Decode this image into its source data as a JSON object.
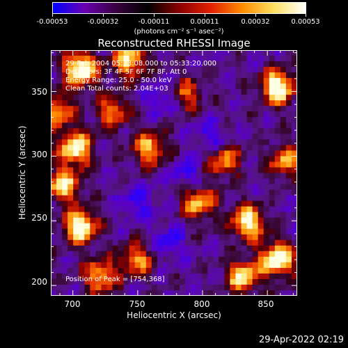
{
  "colorbar": {
    "tick_labels": [
      "-0.00053",
      "-0.00032",
      "-0.00011",
      "0.00011",
      "0.00032",
      "0.00053"
    ],
    "units_label": "(photons cm",
    "units_full": "(photons cm⁻² s⁻¹ asec⁻²)",
    "range": [
      -0.00053,
      0.00053
    ],
    "colors": [
      "#0000ff",
      "#6a00b0",
      "#3a0040",
      "#000000",
      "#8a0000",
      "#e02000",
      "#ff8c00",
      "#ffe060",
      "#ffffff"
    ]
  },
  "title": "Reconstructed RHESSI Image",
  "annotations": {
    "time": "29-Feb-2004 05:33:08.000 to 05:33:20.000",
    "detectors": "Detectors: 3F 4F 5F 6F 7F 8F, Att 0",
    "energy": "Energy Range: 25.0 - 50.0 keV",
    "clean": "Clean     Total counts: 2.04E+03",
    "peak": "Position of Peak = [754,368]"
  },
  "axes": {
    "xlabel": "Heliocentric X (arcsec)",
    "ylabel": "Heliocentric Y (arcsec)",
    "xticks": [
      "700",
      "750",
      "800",
      "850"
    ],
    "yticks": [
      "200",
      "250",
      "300",
      "350"
    ],
    "xlim": [
      683,
      873
    ],
    "ylim": [
      192,
      382
    ]
  },
  "footer": {
    "timestamp": "29-Apr-2022 02:19"
  }
}
